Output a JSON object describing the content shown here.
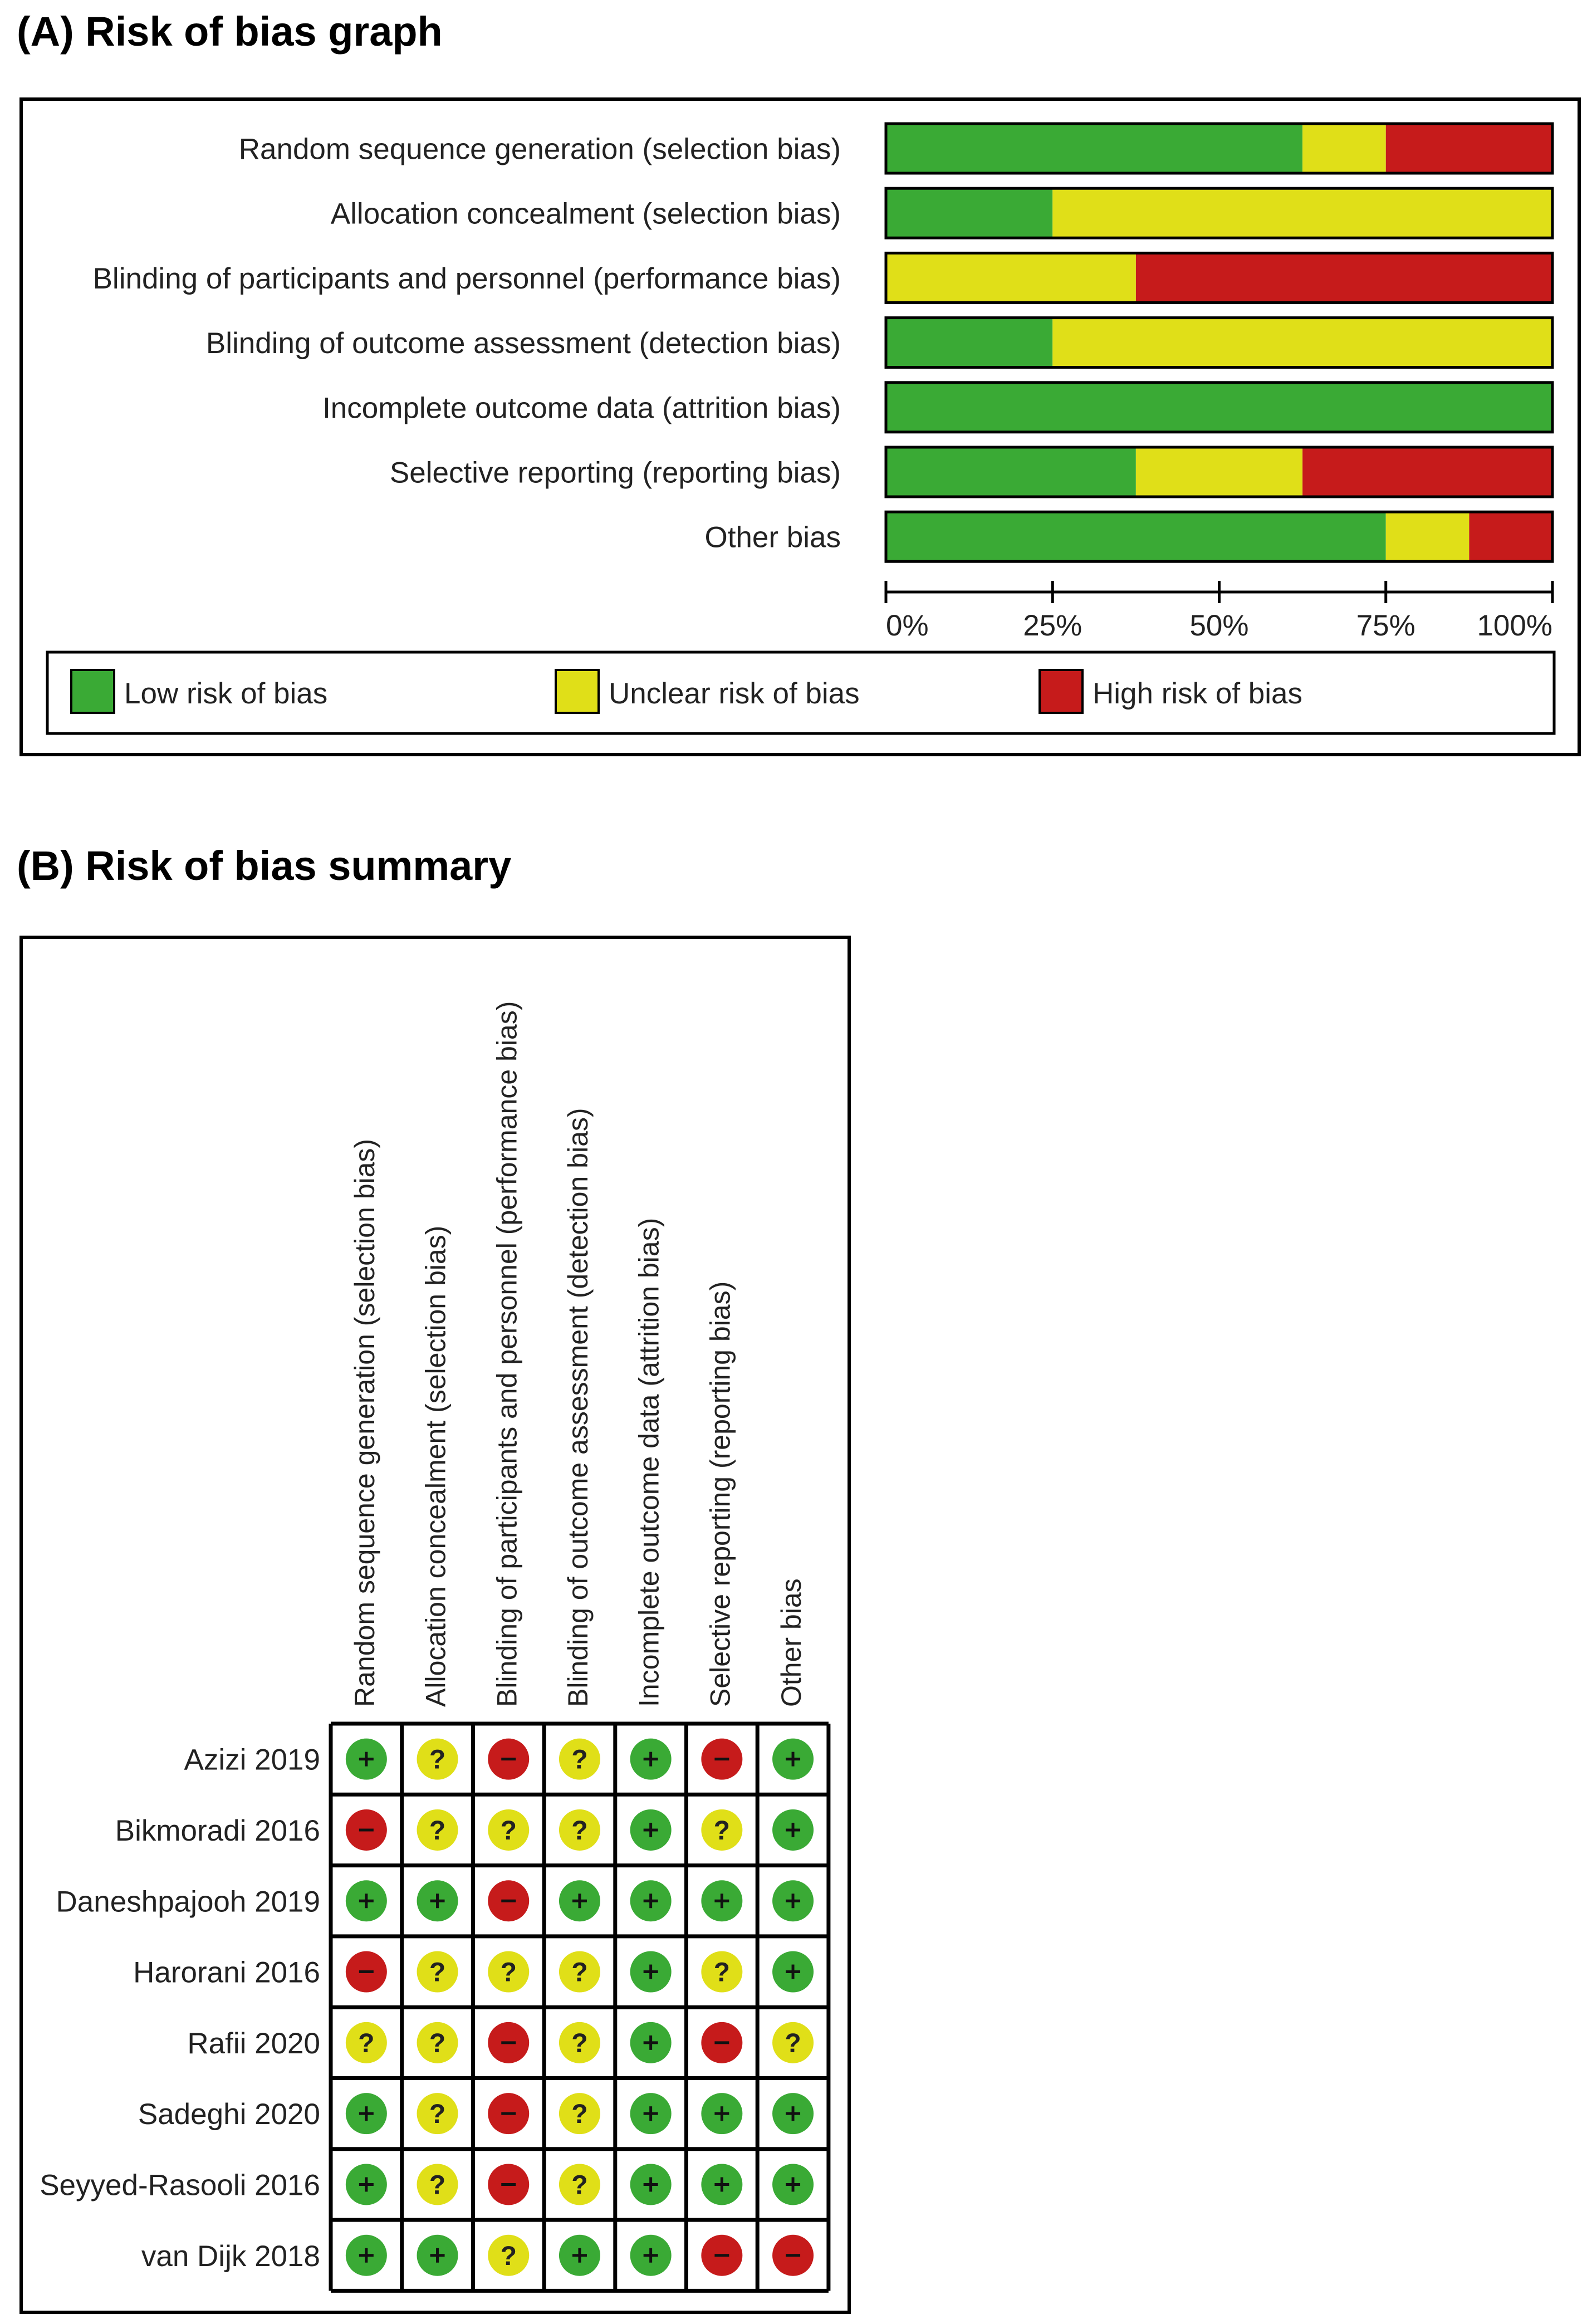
{
  "panel_a": {
    "title": "(A) Risk of bias graph"
  },
  "panel_b": {
    "title": "(B) Risk of bias summary"
  },
  "legend": {
    "low": "Low risk of bias",
    "unclear": "Unclear risk of bias",
    "high": "High risk of bias"
  },
  "colors": {
    "low": "#3aaa35",
    "unclear": "#e0df18",
    "high": "#c61b1b"
  },
  "symbols": {
    "low": "+",
    "unclear": "?",
    "high": "−"
  },
  "chart_data": [
    {
      "type": "bar",
      "orientation": "horizontal-stacked-percent",
      "title": "(A) Risk of bias graph",
      "categories": [
        "Random sequence generation (selection bias)",
        "Allocation concealment (selection bias)",
        "Blinding of participants and personnel (performance bias)",
        "Blinding of outcome assessment (detection bias)",
        "Incomplete outcome data (attrition bias)",
        "Selective reporting (reporting bias)",
        "Other bias"
      ],
      "series": [
        {
          "name": "Low risk of bias",
          "key": "low",
          "values": [
            62.5,
            25,
            0,
            25,
            100,
            37.5,
            75
          ]
        },
        {
          "name": "Unclear risk of bias",
          "key": "unclear",
          "values": [
            12.5,
            75,
            37.5,
            75,
            0,
            25,
            12.5
          ]
        },
        {
          "name": "High risk of bias",
          "key": "high",
          "values": [
            25,
            0,
            62.5,
            0,
            0,
            37.5,
            12.5
          ]
        }
      ],
      "xlim": [
        0,
        100
      ],
      "xticks": [
        "0%",
        "25%",
        "50%",
        "75%",
        "100%"
      ],
      "legend_position": "bottom"
    },
    {
      "type": "table",
      "title": "(B) Risk of bias summary",
      "columns": [
        "Random sequence generation (selection bias)",
        "Allocation concealment (selection bias)",
        "Blinding of participants and personnel (performance bias)",
        "Blinding of outcome assessment (detection bias)",
        "Incomplete outcome data (attrition bias)",
        "Selective reporting (reporting bias)",
        "Other bias"
      ],
      "rows": [
        {
          "study": "Azizi 2019",
          "ratings": [
            "low",
            "unclear",
            "high",
            "unclear",
            "low",
            "high",
            "low"
          ]
        },
        {
          "study": "Bikmoradi 2016",
          "ratings": [
            "high",
            "unclear",
            "unclear",
            "unclear",
            "low",
            "unclear",
            "low"
          ]
        },
        {
          "study": "Daneshpajooh 2019",
          "ratings": [
            "low",
            "low",
            "high",
            "low",
            "low",
            "low",
            "low"
          ]
        },
        {
          "study": "Harorani 2016",
          "ratings": [
            "high",
            "unclear",
            "unclear",
            "unclear",
            "low",
            "unclear",
            "low"
          ]
        },
        {
          "study": "Rafii 2020",
          "ratings": [
            "unclear",
            "unclear",
            "high",
            "unclear",
            "low",
            "high",
            "unclear"
          ]
        },
        {
          "study": "Sadeghi 2020",
          "ratings": [
            "low",
            "unclear",
            "high",
            "unclear",
            "low",
            "low",
            "low"
          ]
        },
        {
          "study": "Seyyed-Rasooli 2016",
          "ratings": [
            "low",
            "unclear",
            "high",
            "unclear",
            "low",
            "low",
            "low"
          ]
        },
        {
          "study": "van Dijk 2018",
          "ratings": [
            "low",
            "low",
            "unclear",
            "low",
            "low",
            "high",
            "high"
          ]
        }
      ]
    }
  ]
}
